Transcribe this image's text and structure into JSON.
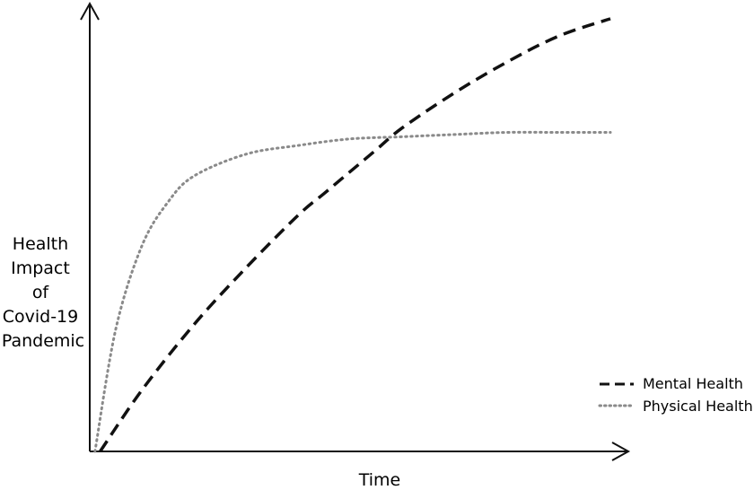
{
  "chart_data": {
    "type": "line",
    "title": "",
    "xlabel": "Time",
    "ylabel_lines": [
      "Health",
      "Impact",
      "of",
      "Covid-19",
      "Pandemic"
    ],
    "xlim": [
      0,
      100
    ],
    "ylim": [
      0,
      100
    ],
    "axis_ticks": false,
    "grid": false,
    "legend_position": "bottom-right",
    "series": [
      {
        "name": "Mental Health",
        "color": "#111111",
        "dash": "dashed",
        "x": [
          2,
          10,
          20,
          30,
          40,
          45,
          50,
          55,
          60,
          70,
          80,
          90,
          100
        ],
        "y": [
          0,
          14,
          29,
          42,
          54,
          59,
          64,
          69,
          74,
          82,
          89,
          95,
          99
        ]
      },
      {
        "name": "Physical Health",
        "color": "#8a8a8a",
        "dash": "dotted",
        "x": [
          1,
          5,
          10,
          15,
          20,
          30,
          40,
          50,
          60,
          70,
          80,
          90,
          100
        ],
        "y": [
          0,
          28,
          47,
          57,
          63,
          68,
          70,
          71.5,
          72,
          72.5,
          73,
          73,
          73
        ]
      }
    ]
  }
}
